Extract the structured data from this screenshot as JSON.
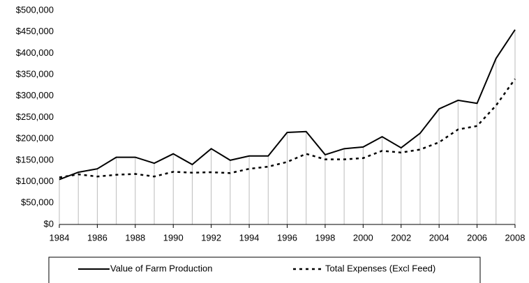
{
  "chart_data": {
    "type": "line",
    "x": [
      1984,
      1985,
      1986,
      1987,
      1988,
      1989,
      1990,
      1991,
      1992,
      1993,
      1994,
      1995,
      1996,
      1997,
      1998,
      1999,
      2000,
      2001,
      2002,
      2003,
      2004,
      2005,
      2006,
      2007,
      2008
    ],
    "series": [
      {
        "name": "Value of Farm Production",
        "color": "#000000",
        "dash": "solid",
        "values": [
          105000,
          122000,
          130000,
          157000,
          157000,
          143000,
          165000,
          140000,
          177000,
          150000,
          160000,
          160000,
          215000,
          217000,
          163000,
          177000,
          181000,
          205000,
          179000,
          213000,
          270000,
          290000,
          283000,
          388000,
          455000
        ]
      },
      {
        "name": "Total Expenses (Excl Feed)",
        "color": "#000000",
        "dash": "dotted",
        "values": [
          110000,
          117000,
          112000,
          116000,
          118000,
          112000,
          123000,
          121000,
          122000,
          120000,
          130000,
          135000,
          146000,
          165000,
          152000,
          152000,
          155000,
          172000,
          168000,
          175000,
          192000,
          222000,
          230000,
          278000,
          340000
        ]
      }
    ],
    "xlim": [
      1984,
      2008
    ],
    "xticks": [
      1984,
      1986,
      1988,
      1990,
      1992,
      1994,
      1996,
      1998,
      2000,
      2002,
      2004,
      2006,
      2008
    ],
    "ylim": [
      0,
      500000
    ],
    "yticks": [
      {
        "value": 0,
        "label": "$0"
      },
      {
        "value": 50000,
        "label": "$50,000"
      },
      {
        "value": 100000,
        "label": "$100,000"
      },
      {
        "value": 150000,
        "label": "$150,000"
      },
      {
        "value": 200000,
        "label": "$200,000"
      },
      {
        "value": 250000,
        "label": "$250,000"
      },
      {
        "value": 300000,
        "label": "$300,000"
      },
      {
        "value": 350000,
        "label": "$350,000"
      },
      {
        "value": 400000,
        "label": "$400,000"
      },
      {
        "value": 450000,
        "label": "$450,000"
      },
      {
        "value": 500000,
        "label": "$500,000"
      }
    ],
    "drop_lines": true,
    "legend": "bottom"
  }
}
